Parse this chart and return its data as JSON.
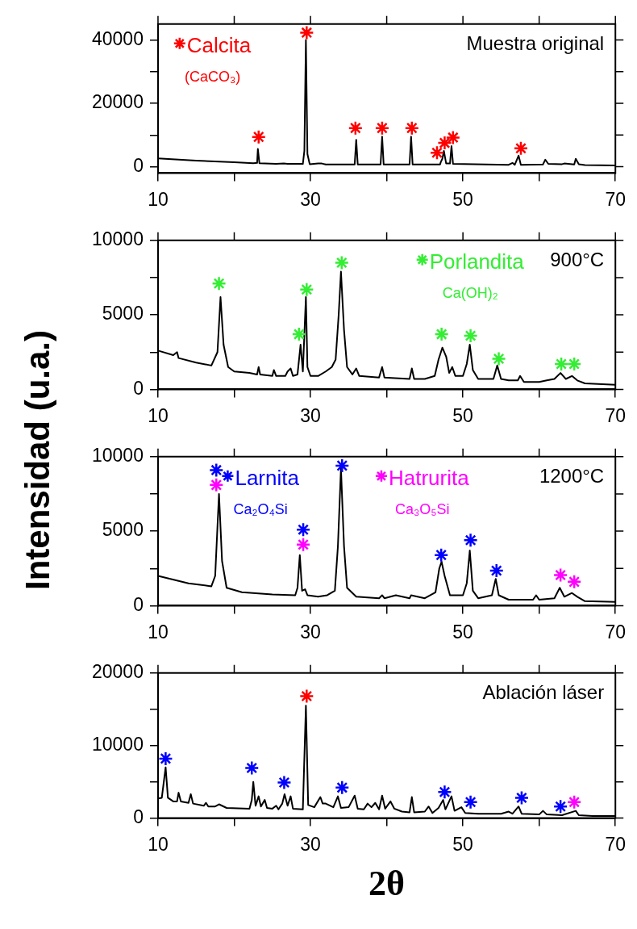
{
  "chart_data": [
    {
      "type": "line",
      "ylabel": "Intensidad (u.a.)",
      "xlim": [
        10,
        70
      ],
      "xticks": [
        10,
        {
          "value": 20,
          "label": null
        },
        30,
        {
          "value": 40,
          "label": null
        },
        50,
        {
          "value": 60,
          "label": null
        },
        70
      ],
      "ylim": [
        -2000,
        45000
      ],
      "yticks": [
        0,
        {
          "value": 10000,
          "label": null
        },
        20000,
        {
          "value": 30000,
          "label": null
        },
        40000
      ],
      "grid": false,
      "legend": "top left",
      "annotations": [
        "Muestra original",
        "(CaCO₃)"
      ],
      "series": [
        {
          "type": "line",
          "color": "#000000",
          "marker": "none",
          "x": [
            10,
            15,
            20,
            22.5,
            23,
            23.1,
            23.3,
            25.5,
            26.5,
            27,
            29,
            29.2,
            29.4,
            29.6,
            29.9,
            31,
            31.5,
            32,
            35.8,
            36,
            36.2,
            39.2,
            39.4,
            39.6,
            43,
            43.2,
            43.4,
            47,
            47.1,
            47.3,
            47.5,
            47.8,
            48.3,
            48.5,
            48.7,
            56,
            56.5,
            56.8,
            57.3,
            57.6,
            60.5,
            60.8,
            61.2,
            63,
            63.3,
            64.6,
            64.8,
            65.2,
            66,
            70
          ],
          "values": [
            2600,
            1900,
            1400,
            1100,
            1200,
            5600,
            1100,
            900,
            1000,
            900,
            900,
            5000,
            40000,
            4000,
            800,
            1000,
            1000,
            700,
            700,
            8500,
            700,
            700,
            9500,
            700,
            700,
            9500,
            700,
            700,
            1500,
            2500,
            5000,
            1000,
            1000,
            6500,
            900,
            600,
            1200,
            600,
            3500,
            600,
            700,
            2200,
            900,
            800,
            1000,
            700,
            2500,
            800,
            500,
            400
          ]
        },
        {
          "type": "scatter",
          "name": "Calcita",
          "color": "#ff0000",
          "marker": "cross",
          "x": [
            23.2,
            29.5,
            35.9,
            39.4,
            43.3,
            46.6,
            47.6,
            48.7,
            57.6
          ],
          "values": [
            9400,
            42300,
            12200,
            12200,
            12200,
            4400,
            7500,
            9200,
            5800
          ]
        }
      ]
    },
    {
      "type": "line",
      "xlim": [
        10,
        70
      ],
      "xticks": [
        10,
        {
          "value": 20,
          "label": null
        },
        30,
        {
          "value": 40,
          "label": null
        },
        50,
        {
          "value": 60,
          "label": null
        },
        70
      ],
      "ylim": [
        0,
        10000
      ],
      "yticks": [
        0,
        {
          "value": 2500,
          "label": null
        },
        5000,
        {
          "value": 7500,
          "label": null
        },
        10000
      ],
      "grid": false,
      "legend": "top right",
      "annotations": [
        "900°C",
        "Ca(OH)₂"
      ],
      "series": [
        {
          "type": "line",
          "color": "#000000",
          "marker": "none",
          "x": [
            10,
            12,
            12.5,
            12.7,
            15,
            17,
            17.8,
            18.2,
            18.6,
            19.2,
            20,
            22,
            23,
            23.2,
            23.4,
            25,
            25.2,
            25.5,
            26.7,
            27,
            27.4,
            27.7,
            28.3,
            28.7,
            29,
            29.4,
            29.6,
            30,
            31,
            32,
            32.8,
            33.3,
            33.7,
            34,
            34.4,
            34.8,
            35.5,
            36,
            36.4,
            39,
            39.4,
            39.7,
            43,
            43.3,
            43.6,
            45,
            46.3,
            46.8,
            47.3,
            47.8,
            48.2,
            48.6,
            49,
            50,
            50.5,
            50.9,
            51.3,
            52,
            54,
            54.5,
            55,
            56,
            57.2,
            57.5,
            58,
            60,
            61,
            62,
            62.8,
            63.5,
            64.3,
            65,
            66,
            70
          ],
          "values": [
            2600,
            2300,
            2500,
            2100,
            1800,
            1600,
            2500,
            6200,
            3000,
            1500,
            1200,
            1100,
            1000,
            1500,
            1000,
            900,
            1300,
            900,
            900,
            1200,
            1400,
            900,
            1000,
            3000,
            1200,
            6200,
            1500,
            900,
            900,
            1200,
            1500,
            2000,
            5000,
            7900,
            4000,
            1500,
            1000,
            1400,
            900,
            800,
            1500,
            800,
            700,
            1400,
            700,
            700,
            900,
            2000,
            2800,
            2200,
            1100,
            1500,
            900,
            900,
            1700,
            3000,
            1300,
            700,
            700,
            1600,
            700,
            600,
            600,
            900,
            500,
            500,
            600,
            700,
            1100,
            700,
            900,
            600,
            400,
            300
          ]
        },
        {
          "type": "scatter",
          "name": "Porlandita",
          "color": "#33ee33",
          "marker": "cross",
          "x": [
            18.0,
            28.5,
            29.5,
            34.1,
            47.2,
            51.0,
            54.7,
            62.9,
            64.6
          ],
          "values": [
            7100,
            3700,
            6700,
            8500,
            3700,
            3600,
            2050,
            1700,
            1700
          ]
        }
      ]
    },
    {
      "type": "line",
      "xlim": [
        10,
        70
      ],
      "xticks": [
        10,
        {
          "value": 20,
          "label": null
        },
        30,
        {
          "value": 40,
          "label": null
        },
        50,
        {
          "value": 60,
          "label": null
        },
        70
      ],
      "ylim": [
        0,
        10000
      ],
      "yticks": [
        0,
        {
          "value": 2500,
          "label": null
        },
        5000,
        {
          "value": 7500,
          "label": null
        },
        10000
      ],
      "grid": false,
      "legend": "top",
      "annotations": [
        "1200°C",
        "Ca₂O₄Si",
        "Ca₃O₅Si"
      ],
      "series": [
        {
          "type": "line",
          "color": "#000000",
          "marker": "none",
          "x": [
            10,
            14,
            17,
            17.5,
            18,
            18.4,
            19,
            21,
            25,
            28,
            28.3,
            28.6,
            28.9,
            29.3,
            29.6,
            31,
            32.2,
            33.2,
            33.6,
            34,
            34.4,
            34.8,
            36,
            39,
            39.4,
            39.7,
            41.2,
            43,
            43.2,
            45,
            46.4,
            46.9,
            47.2,
            47.6,
            48.3,
            50,
            50.5,
            50.9,
            51.3,
            52,
            53.8,
            54.3,
            54.7,
            56,
            59.2,
            59.6,
            60,
            62,
            62.7,
            63.3,
            64.3,
            65,
            66,
            70
          ],
          "values": [
            2000,
            1500,
            1300,
            2000,
            7500,
            3000,
            1200,
            900,
            750,
            700,
            1200,
            3400,
            1000,
            1100,
            700,
            600,
            700,
            1000,
            4000,
            9200,
            4000,
            1200,
            600,
            500,
            700,
            500,
            700,
            500,
            700,
            500,
            900,
            2500,
            2950,
            2000,
            700,
            700,
            1500,
            3700,
            1000,
            500,
            700,
            1800,
            700,
            400,
            400,
            700,
            400,
            500,
            1200,
            600,
            850,
            600,
            300,
            250
          ]
        },
        {
          "type": "scatter",
          "name": "Larnita",
          "color": "#0000ff",
          "marker": "cross",
          "x": [
            17.65,
            29.05,
            34.15,
            47.15,
            51.0,
            54.4
          ],
          "values": [
            9100,
            5100,
            9400,
            3400,
            4400,
            2350
          ]
        },
        {
          "type": "scatter",
          "name": "Hatrurita",
          "color": "#ff00ff",
          "marker": "cross",
          "x": [
            17.65,
            29.05,
            62.8,
            64.6
          ],
          "values": [
            8100,
            4100,
            2050,
            1600
          ]
        }
      ]
    },
    {
      "type": "line",
      "xlabel": "2θ",
      "xlim": [
        10,
        70
      ],
      "xticks": [
        10,
        {
          "value": 20,
          "label": null
        },
        30,
        {
          "value": 40,
          "label": null
        },
        50,
        {
          "value": 60,
          "label": null
        },
        70
      ],
      "ylim": [
        0,
        20000
      ],
      "yticks": [
        0,
        {
          "value": 5000,
          "label": null
        },
        10000,
        {
          "value": 15000,
          "label": null
        },
        20000
      ],
      "grid": false,
      "annotations": [
        "Ablación láser"
      ],
      "series": [
        {
          "type": "line",
          "color": "#000000",
          "marker": "none",
          "x": [
            10,
            10.5,
            11,
            11.3,
            12,
            12.5,
            12.7,
            13,
            14,
            14.3,
            14.6,
            16,
            16.3,
            16.6,
            17.5,
            18,
            19,
            22,
            22.3,
            22.5,
            22.8,
            23.2,
            23.5,
            24,
            24.3,
            25,
            25.5,
            25.8,
            26.3,
            26.6,
            27,
            27.4,
            27.7,
            29,
            29.4,
            29.7,
            30.5,
            31.3,
            31.6,
            32,
            33,
            33.6,
            34,
            35,
            35.8,
            36.2,
            37,
            37.5,
            38,
            38.5,
            39,
            39.4,
            39.8,
            40.5,
            41,
            42,
            43,
            43.3,
            43.6,
            45,
            45.5,
            46,
            46.8,
            47.4,
            47.7,
            48.5,
            48.9,
            49.8,
            50.3,
            52,
            55,
            56,
            56.5,
            57.3,
            57.7,
            60,
            60.5,
            61,
            63,
            64.8,
            65.2,
            67,
            70
          ],
          "values": [
            2700,
            2800,
            7000,
            2800,
            2300,
            2300,
            3500,
            2300,
            2100,
            3300,
            2000,
            1700,
            2100,
            1600,
            1600,
            1900,
            1400,
            1300,
            2500,
            5000,
            1700,
            3000,
            1600,
            2500,
            1400,
            1300,
            1700,
            1200,
            2000,
            3300,
            1700,
            3000,
            1300,
            1200,
            15500,
            1800,
            1500,
            2900,
            2000,
            2000,
            1500,
            3000,
            1400,
            1500,
            3100,
            1300,
            1200,
            2000,
            1500,
            2100,
            1200,
            3100,
            1300,
            2300,
            1300,
            900,
            800,
            2900,
            800,
            900,
            1600,
            700,
            1400,
            2500,
            1200,
            3000,
            1000,
            1500,
            700,
            600,
            600,
            900,
            600,
            1600,
            600,
            500,
            1000,
            500,
            400,
            1000,
            400,
            300,
            300
          ]
        },
        {
          "type": "scatter",
          "color": "#0000ff",
          "marker": "cross",
          "x": [
            11.0,
            22.3,
            26.55,
            34.15,
            47.6,
            51.0,
            57.7,
            62.8
          ],
          "values": [
            8200,
            6900,
            4900,
            4200,
            3600,
            2200,
            2800,
            1600
          ]
        },
        {
          "type": "scatter",
          "color": "#ff00ff",
          "marker": "cross",
          "x": [
            64.6
          ],
          "values": [
            2200
          ]
        },
        {
          "type": "scatter",
          "color": "#ff0000",
          "marker": "cross",
          "x": [
            29.5
          ],
          "values": [
            16800
          ]
        }
      ]
    }
  ]
}
